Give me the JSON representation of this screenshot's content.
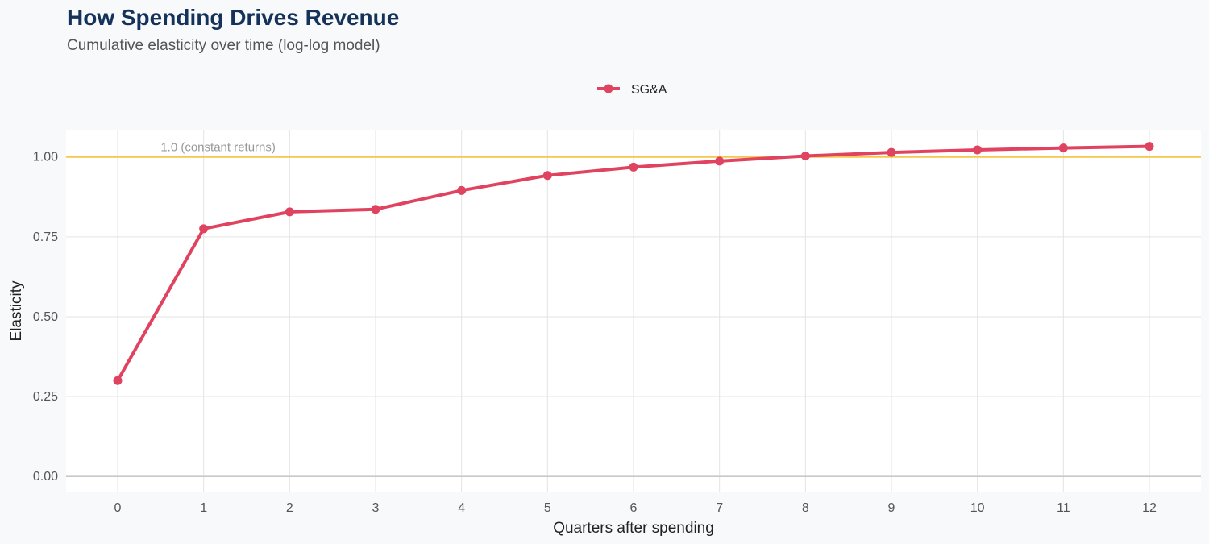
{
  "header": {
    "title": "How Spending Drives Revenue",
    "subtitle": "Cumulative elasticity over time (log-log model)"
  },
  "colors": {
    "series": "#e0435f",
    "reference_line": "#f5c84c",
    "grid": "#e3e3e3",
    "zero_line": "#c8c8c8",
    "panel": "#ffffff"
  },
  "chart_data": {
    "type": "line",
    "title": "How Spending Drives Revenue",
    "subtitle": "Cumulative elasticity over time (log-log model)",
    "xlabel": "Quarters after spending",
    "ylabel": "Elasticity",
    "x": [
      0,
      1,
      2,
      3,
      4,
      5,
      6,
      7,
      8,
      9,
      10,
      11,
      12
    ],
    "xticks": [
      "0",
      "1",
      "2",
      "3",
      "4",
      "5",
      "6",
      "7",
      "8",
      "9",
      "10",
      "11",
      "12"
    ],
    "yticks": [
      "0.00",
      "0.25",
      "0.50",
      "0.75",
      "1.00"
    ],
    "ytick_values": [
      0,
      0.25,
      0.5,
      0.75,
      1.0
    ],
    "xlim": [
      -0.6,
      12.6
    ],
    "ylim": [
      -0.05,
      1.085
    ],
    "grid": true,
    "legend_position": "top-center",
    "series": [
      {
        "name": "SG&A",
        "values": [
          0.3,
          0.775,
          0.828,
          0.836,
          0.895,
          0.942,
          0.968,
          0.987,
          1.003,
          1.014,
          1.022,
          1.028,
          1.033
        ]
      }
    ],
    "reference_line": {
      "y": 1.0,
      "label": "1.0 (constant returns)"
    }
  }
}
